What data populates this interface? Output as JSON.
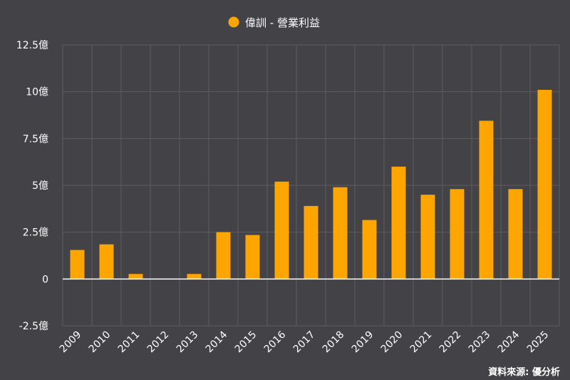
{
  "chart_data": {
    "type": "bar",
    "categories": [
      "2009",
      "2010",
      "2011",
      "2012",
      "2013",
      "2014",
      "2015",
      "2016",
      "2017",
      "2018",
      "2019",
      "2020",
      "2021",
      "2022",
      "2023",
      "2024",
      "2025"
    ],
    "series": [
      {
        "name": "偉訓 - 營業利益",
        "values": [
          1.55,
          1.85,
          0.27,
          0,
          0.27,
          2.5,
          2.35,
          5.2,
          3.9,
          4.9,
          3.15,
          6.0,
          4.5,
          4.8,
          8.45,
          4.8,
          10.1
        ]
      }
    ],
    "ylim": [
      -2.5,
      12.5
    ],
    "yticks": [
      -2.5,
      0,
      2.5,
      5,
      7.5,
      10,
      12.5
    ],
    "ytick_labels": [
      "-2.5億",
      "0",
      "2.5億",
      "5億",
      "7.5億",
      "10億",
      "12.5億"
    ],
    "grid": true,
    "legend": "top-center"
  },
  "colors": {
    "background": "#434247",
    "bar": "#FFA500",
    "grid": "#5d5c62",
    "zero_line": "#ffffff"
  },
  "source": "資料來源: 優分析"
}
